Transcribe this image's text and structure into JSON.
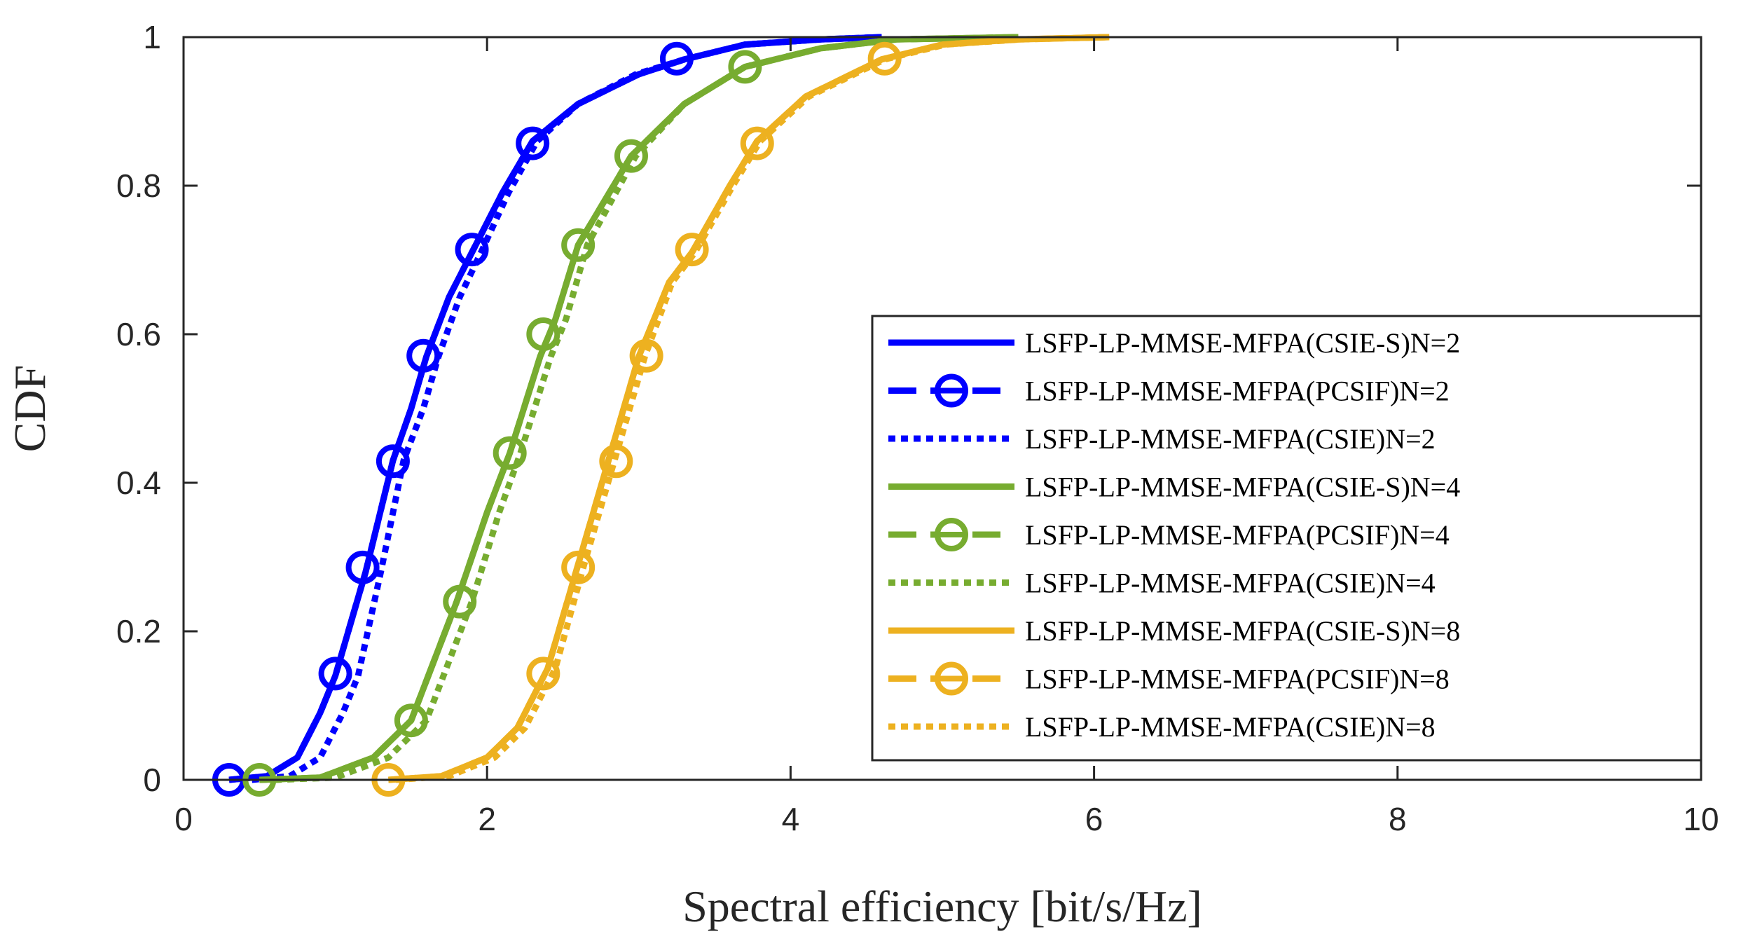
{
  "chart_data": {
    "type": "line",
    "title": "",
    "xlabel": "Spectral efficiency [bit/s/Hz]",
    "ylabel": "CDF",
    "xlim": [
      0,
      10
    ],
    "ylim": [
      0,
      1
    ],
    "xticks": [
      0,
      2,
      4,
      6,
      8,
      10
    ],
    "yticks": [
      0,
      0.2,
      0.4,
      0.6,
      0.8,
      1
    ],
    "xtick_labels": [
      "0",
      "2",
      "4",
      "6",
      "8",
      "10"
    ],
    "ytick_labels": [
      "0",
      "0.2",
      "0.4",
      "0.6",
      "0.8",
      "1"
    ],
    "grid": false,
    "legend_position": "right",
    "series": [
      {
        "name": "LSFP-LP-MMSE-MFPA(CSIE-S)N=2",
        "color": "#0000ff",
        "style": "solid",
        "marker": "none",
        "x": [
          0.3,
          0.55,
          0.75,
          0.9,
          1.0,
          1.2,
          1.38,
          1.5,
          1.6,
          1.75,
          1.9,
          2.1,
          2.3,
          2.6,
          3.0,
          3.3,
          3.7,
          4.2,
          4.6
        ],
        "y": [
          0.0,
          0.005,
          0.03,
          0.09,
          0.14,
          0.28,
          0.43,
          0.5,
          0.57,
          0.65,
          0.71,
          0.79,
          0.86,
          0.91,
          0.95,
          0.97,
          0.99,
          0.997,
          1.0
        ]
      },
      {
        "name": "LSFP-LP-MMSE-MFPA(PCSIF)N=2",
        "color": "#0000ff",
        "style": "dashed",
        "marker": "circle",
        "x": [
          0.3,
          0.55,
          0.75,
          0.9,
          1.0,
          1.2,
          1.38,
          1.5,
          1.6,
          1.75,
          1.9,
          2.1,
          2.3,
          2.6,
          3.0,
          3.3,
          3.7,
          4.2,
          4.6
        ],
        "y": [
          0.0,
          0.005,
          0.03,
          0.09,
          0.14,
          0.28,
          0.43,
          0.5,
          0.57,
          0.65,
          0.71,
          0.79,
          0.86,
          0.91,
          0.95,
          0.97,
          0.99,
          0.997,
          1.0
        ],
        "markers_x": [
          0.3,
          1.0,
          1.18,
          1.38,
          1.58,
          1.9,
          2.3,
          3.25
        ],
        "markers_y": [
          0.0,
          0.143,
          0.286,
          0.429,
          0.571,
          0.714,
          0.857,
          0.971
        ]
      },
      {
        "name": "LSFP-LP-MMSE-MFPA(CSIE)N=2",
        "color": "#0000ff",
        "style": "dotted",
        "marker": "none",
        "x": [
          0.45,
          0.7,
          0.9,
          1.05,
          1.15,
          1.3,
          1.45,
          1.58,
          1.68,
          1.82,
          1.96,
          2.14,
          2.33,
          2.6,
          2.98,
          3.3,
          3.7,
          4.2,
          4.6
        ],
        "y": [
          0.0,
          0.005,
          0.03,
          0.09,
          0.14,
          0.28,
          0.43,
          0.5,
          0.57,
          0.65,
          0.71,
          0.79,
          0.86,
          0.91,
          0.95,
          0.97,
          0.99,
          0.997,
          1.0
        ]
      },
      {
        "name": "LSFP-LP-MMSE-MFPA(CSIE-S)N=4",
        "color": "#77ac30",
        "style": "solid",
        "marker": "none",
        "x": [
          0.5,
          0.9,
          1.25,
          1.5,
          1.8,
          2.0,
          2.15,
          2.35,
          2.45,
          2.6,
          2.95,
          3.3,
          3.7,
          4.2,
          4.7,
          5.5
        ],
        "y": [
          0.0,
          0.003,
          0.03,
          0.08,
          0.24,
          0.36,
          0.44,
          0.57,
          0.62,
          0.72,
          0.84,
          0.91,
          0.96,
          0.985,
          0.997,
          1.0
        ]
      },
      {
        "name": "LSFP-LP-MMSE-MFPA(PCSIF)N=4",
        "color": "#77ac30",
        "style": "dashed",
        "marker": "circle",
        "x": [
          0.5,
          0.9,
          1.25,
          1.5,
          1.8,
          2.0,
          2.15,
          2.35,
          2.45,
          2.6,
          2.95,
          3.3,
          3.7,
          4.2,
          4.7,
          5.5
        ],
        "y": [
          0.0,
          0.003,
          0.03,
          0.08,
          0.24,
          0.36,
          0.44,
          0.57,
          0.62,
          0.72,
          0.84,
          0.91,
          0.96,
          0.985,
          0.997,
          1.0
        ],
        "markers_x": [
          0.5,
          1.5,
          1.82,
          2.15,
          2.37,
          2.6,
          2.95,
          3.7
        ],
        "markers_y": [
          0.0,
          0.08,
          0.24,
          0.44,
          0.6,
          0.72,
          0.84,
          0.96
        ]
      },
      {
        "name": "LSFP-LP-MMSE-MFPA(CSIE)N=4",
        "color": "#77ac30",
        "style": "dotted",
        "marker": "none",
        "x": [
          0.6,
          1.0,
          1.35,
          1.6,
          1.9,
          2.08,
          2.22,
          2.42,
          2.52,
          2.66,
          2.98,
          3.3,
          3.7,
          4.2,
          4.7,
          5.5
        ],
        "y": [
          0.0,
          0.003,
          0.03,
          0.08,
          0.24,
          0.36,
          0.44,
          0.57,
          0.62,
          0.72,
          0.84,
          0.91,
          0.96,
          0.985,
          0.997,
          1.0
        ]
      },
      {
        "name": "LSFP-LP-MMSE-MFPA(CSIE-S)N=8",
        "color": "#edb120",
        "style": "solid",
        "marker": "none",
        "x": [
          1.35,
          1.7,
          2.0,
          2.2,
          2.4,
          2.6,
          2.8,
          3.0,
          3.2,
          3.35,
          3.6,
          3.78,
          4.1,
          4.6,
          5.0,
          5.5,
          6.1
        ],
        "y": [
          0.0,
          0.005,
          0.03,
          0.07,
          0.15,
          0.29,
          0.43,
          0.57,
          0.67,
          0.71,
          0.8,
          0.86,
          0.92,
          0.97,
          0.99,
          0.997,
          1.0
        ]
      },
      {
        "name": "LSFP-LP-MMSE-MFPA(PCSIF)N=8",
        "color": "#edb120",
        "style": "dashed",
        "marker": "circle",
        "x": [
          1.35,
          1.7,
          2.0,
          2.2,
          2.4,
          2.6,
          2.8,
          3.0,
          3.2,
          3.35,
          3.6,
          3.78,
          4.1,
          4.6,
          5.0,
          5.5,
          6.1
        ],
        "y": [
          0.0,
          0.005,
          0.03,
          0.07,
          0.15,
          0.29,
          0.43,
          0.57,
          0.67,
          0.71,
          0.8,
          0.86,
          0.92,
          0.97,
          0.99,
          0.997,
          1.0
        ],
        "markers_x": [
          1.35,
          2.37,
          2.6,
          2.85,
          3.05,
          3.35,
          3.78,
          4.62
        ],
        "markers_y": [
          0.0,
          0.143,
          0.286,
          0.429,
          0.571,
          0.714,
          0.857,
          0.971
        ]
      },
      {
        "name": "LSFP-LP-MMSE-MFPA(CSIE)N=8",
        "color": "#edb120",
        "style": "dotted",
        "marker": "none",
        "x": [
          1.4,
          1.75,
          2.05,
          2.25,
          2.45,
          2.64,
          2.84,
          3.04,
          3.22,
          3.37,
          3.62,
          3.8,
          4.12,
          4.62,
          5.02,
          5.52,
          6.1
        ],
        "y": [
          0.0,
          0.005,
          0.03,
          0.07,
          0.15,
          0.29,
          0.43,
          0.57,
          0.67,
          0.71,
          0.8,
          0.86,
          0.92,
          0.97,
          0.99,
          0.997,
          1.0
        ]
      }
    ]
  }
}
